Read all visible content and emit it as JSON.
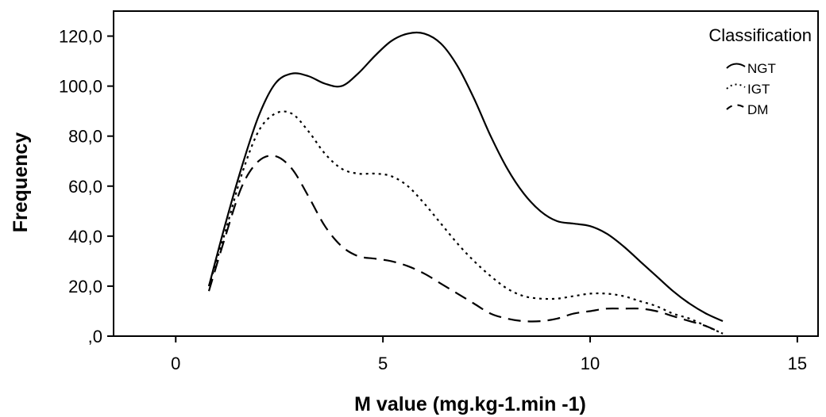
{
  "chart_data": {
    "type": "line",
    "xlabel": "M value (mg.kg-1.min -1)",
    "ylabel": "Frequency",
    "xlim": [
      -1.5,
      15.5
    ],
    "ylim": [
      0,
      130
    ],
    "x_ticks": [
      0,
      5,
      10,
      15
    ],
    "x_tick_labels": [
      "0",
      "5",
      "10",
      "15"
    ],
    "y_ticks": [
      0,
      20,
      40,
      60,
      80,
      100,
      120
    ],
    "y_tick_labels": [
      ",0",
      "20,0",
      "40,0",
      "60,0",
      "80,0",
      "100,0",
      "120,0"
    ],
    "grid": false,
    "legend": {
      "title": "Classification",
      "position": "top-right"
    },
    "series": [
      {
        "name": "NGT",
        "style": "solid",
        "x": [
          0.8,
          1.2,
          1.6,
          2.0,
          2.4,
          2.8,
          3.2,
          3.6,
          4.0,
          4.4,
          4.8,
          5.2,
          5.6,
          6.0,
          6.4,
          6.8,
          7.2,
          7.6,
          8.0,
          8.4,
          8.8,
          9.2,
          9.6,
          10.0,
          10.4,
          10.8,
          11.2,
          11.6,
          12.0,
          12.4,
          12.8,
          13.2
        ],
        "y": [
          20,
          45,
          68,
          88,
          101,
          105,
          104,
          101,
          100,
          105,
          112,
          118,
          121,
          121,
          117,
          108,
          95,
          80,
          67,
          57,
          50,
          46,
          45,
          44,
          41,
          36,
          30,
          24,
          18,
          13,
          9,
          6
        ]
      },
      {
        "name": "IGT",
        "style": "dotted",
        "x": [
          0.8,
          1.2,
          1.6,
          2.0,
          2.4,
          2.8,
          3.2,
          3.6,
          4.0,
          4.4,
          4.8,
          5.2,
          5.6,
          6.0,
          6.4,
          6.8,
          7.2,
          7.6,
          8.0,
          8.4,
          8.8,
          9.2,
          9.6,
          10.0,
          10.4,
          10.8,
          11.2,
          11.6,
          12.0,
          12.4,
          12.8,
          13.2
        ],
        "y": [
          20,
          42,
          65,
          82,
          89,
          89,
          82,
          73,
          67,
          65,
          65,
          64,
          60,
          53,
          45,
          37,
          30,
          24,
          19,
          16,
          15,
          15,
          16,
          17,
          17,
          16,
          14,
          12,
          9,
          7,
          4,
          1
        ]
      },
      {
        "name": "DM",
        "style": "dashed",
        "x": [
          0.8,
          1.2,
          1.6,
          2.0,
          2.4,
          2.8,
          3.2,
          3.6,
          4.0,
          4.4,
          4.8,
          5.2,
          5.6,
          6.0,
          6.4,
          6.8,
          7.2,
          7.6,
          8.0,
          8.4,
          8.8,
          9.2,
          9.6,
          10.0,
          10.4,
          10.8,
          11.2,
          11.6,
          12.0,
          12.4,
          12.8,
          13.2
        ],
        "y": [
          18,
          40,
          60,
          70,
          72,
          67,
          56,
          44,
          36,
          32,
          31,
          30,
          28,
          25,
          21,
          17,
          13,
          9,
          7,
          6,
          6,
          7,
          9,
          10,
          11,
          11,
          11,
          10,
          8,
          6,
          4,
          1
        ]
      }
    ]
  }
}
